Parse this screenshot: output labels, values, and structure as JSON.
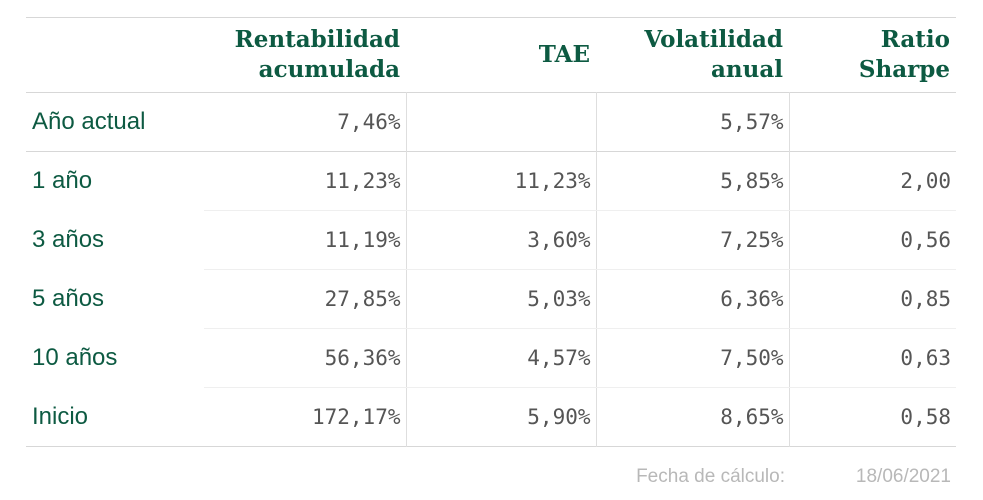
{
  "table": {
    "headers": [
      "",
      "Rentabilidad acumulada",
      "TAE",
      "Volatilidad anual",
      "Ratio Sharpe"
    ],
    "rows": [
      {
        "label": "Año actual",
        "rentabilidad": "7,46%",
        "tae": "",
        "volatilidad": "5,57%",
        "sharpe": ""
      },
      {
        "label": "1 año",
        "rentabilidad": "11,23%",
        "tae": "11,23%",
        "volatilidad": "5,85%",
        "sharpe": "2,00"
      },
      {
        "label": "3 años",
        "rentabilidad": "11,19%",
        "tae": "3,60%",
        "volatilidad": "7,25%",
        "sharpe": "0,56"
      },
      {
        "label": "5 años",
        "rentabilidad": "27,85%",
        "tae": "5,03%",
        "volatilidad": "6,36%",
        "sharpe": "0,85"
      },
      {
        "label": "10 años",
        "rentabilidad": "56,36%",
        "tae": "4,57%",
        "volatilidad": "7,50%",
        "sharpe": "0,63"
      },
      {
        "label": "Inicio",
        "rentabilidad": "172,17%",
        "tae": "5,90%",
        "volatilidad": "8,65%",
        "sharpe": "0,58"
      }
    ]
  },
  "footer": {
    "label": "Fecha de cálculo:",
    "date": "18/06/2021"
  },
  "colors": {
    "accent": "#0d5a42",
    "value_text": "#555555",
    "footer_text": "#b8b8b8"
  }
}
